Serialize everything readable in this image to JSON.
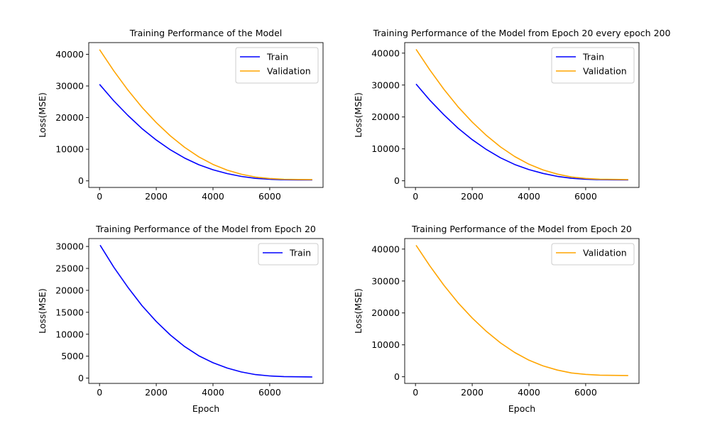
{
  "colors": {
    "train": "#0000ff",
    "validation": "#ffa500",
    "axes": "#000000",
    "background": "#ffffff"
  },
  "chart_data": [
    {
      "type": "line",
      "title": "Training Performance of the Model",
      "xlabel": "",
      "ylabel": "Loss(MSE)",
      "xlim": [
        -380,
        7880
      ],
      "ylim": [
        -2080,
        43700
      ],
      "xticks": [
        0,
        2000,
        4000,
        6000
      ],
      "yticks": [
        0,
        10000,
        20000,
        30000,
        40000
      ],
      "grid": false,
      "legend_position": "upper-right",
      "series": [
        {
          "name": "Train",
          "color": "#0000ff",
          "x": [
            0,
            500,
            1000,
            1500,
            2000,
            2500,
            3000,
            3500,
            4000,
            4500,
            5000,
            5500,
            6000,
            6500,
            7000,
            7500
          ],
          "y": [
            30500,
            25300,
            20700,
            16500,
            12900,
            9800,
            7200,
            5100,
            3500,
            2300,
            1400,
            800,
            500,
            350,
            300,
            280
          ]
        },
        {
          "name": "Validation",
          "color": "#ffa500",
          "x": [
            0,
            500,
            1000,
            1500,
            2000,
            2500,
            3000,
            3500,
            4000,
            4500,
            5000,
            5500,
            6000,
            6500,
            7000,
            7500
          ],
          "y": [
            41500,
            34800,
            28700,
            23200,
            18400,
            14200,
            10600,
            7600,
            5200,
            3400,
            2100,
            1200,
            750,
            500,
            430,
            400
          ]
        }
      ]
    },
    {
      "type": "line",
      "title": "Training Performance of the Model from Epoch 20 every epoch 200",
      "xlabel": "",
      "ylabel": "Loss(MSE)",
      "xlim": [
        -380,
        7880
      ],
      "ylim": [
        -2080,
        43300
      ],
      "xticks": [
        0,
        2000,
        4000,
        6000
      ],
      "yticks": [
        0,
        10000,
        20000,
        30000,
        40000
      ],
      "grid": false,
      "legend_position": "upper-right",
      "series": [
        {
          "name": "Train",
          "color": "#0000ff",
          "x": [
            20,
            500,
            1000,
            1500,
            2000,
            2500,
            3000,
            3500,
            4000,
            4500,
            5000,
            5500,
            6000,
            6500,
            7000,
            7500
          ],
          "y": [
            30300,
            25300,
            20700,
            16500,
            12900,
            9800,
            7200,
            5100,
            3500,
            2300,
            1400,
            800,
            500,
            350,
            300,
            280
          ]
        },
        {
          "name": "Validation",
          "color": "#ffa500",
          "x": [
            20,
            500,
            1000,
            1500,
            2000,
            2500,
            3000,
            3500,
            4000,
            4500,
            5000,
            5500,
            6000,
            6500,
            7000,
            7500
          ],
          "y": [
            41200,
            34800,
            28700,
            23200,
            18400,
            14200,
            10600,
            7600,
            5200,
            3400,
            2100,
            1200,
            750,
            500,
            430,
            400
          ]
        }
      ]
    },
    {
      "type": "line",
      "title": "Training Performance of the Model from Epoch 20",
      "xlabel": "Epoch",
      "ylabel": "Loss(MSE)",
      "xlim": [
        -380,
        7880
      ],
      "ylim": [
        -1200,
        31800
      ],
      "xticks": [
        0,
        2000,
        4000,
        6000
      ],
      "yticks": [
        0,
        5000,
        10000,
        15000,
        20000,
        25000,
        30000
      ],
      "grid": false,
      "legend_position": "upper-right",
      "series": [
        {
          "name": "Train",
          "color": "#0000ff",
          "x": [
            20,
            500,
            1000,
            1500,
            2000,
            2500,
            3000,
            3500,
            4000,
            4500,
            5000,
            5500,
            6000,
            6500,
            7000,
            7500
          ],
          "y": [
            30300,
            25300,
            20700,
            16500,
            12900,
            9800,
            7200,
            5100,
            3500,
            2300,
            1400,
            800,
            500,
            350,
            300,
            280
          ]
        }
      ]
    },
    {
      "type": "line",
      "title": "Training Performance of the Model from Epoch 20",
      "xlabel": "Epoch",
      "ylabel": "Loss(MSE)",
      "xlim": [
        -380,
        7880
      ],
      "ylim": [
        -2080,
        43300
      ],
      "xticks": [
        0,
        2000,
        4000,
        6000
      ],
      "yticks": [
        0,
        10000,
        20000,
        30000,
        40000
      ],
      "grid": false,
      "legend_position": "upper-right",
      "series": [
        {
          "name": "Validation",
          "color": "#ffa500",
          "x": [
            20,
            500,
            1000,
            1500,
            2000,
            2500,
            3000,
            3500,
            4000,
            4500,
            5000,
            5500,
            6000,
            6500,
            7000,
            7500
          ],
          "y": [
            41200,
            34800,
            28700,
            23200,
            18400,
            14200,
            10600,
            7600,
            5200,
            3400,
            2100,
            1200,
            750,
            500,
            430,
            400
          ]
        }
      ]
    }
  ]
}
